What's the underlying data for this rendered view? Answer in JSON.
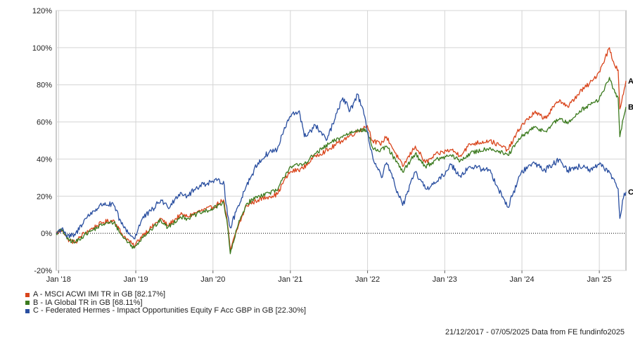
{
  "chart_data": {
    "type": "line",
    "title": "",
    "xlabel": "",
    "ylabel": "",
    "x_range": [
      "2017-12-21",
      "2025-05-07"
    ],
    "ylim": [
      -20,
      120
    ],
    "y_ticks": [
      -20,
      0,
      20,
      40,
      60,
      80,
      100,
      120
    ],
    "y_tick_labels": [
      "-20%",
      "0%",
      "20%",
      "40%",
      "60%",
      "80%",
      "100%",
      "120%"
    ],
    "x_ticks": [
      {
        "date": "2018-01-01",
        "label": "Jan '18"
      },
      {
        "date": "2019-01-01",
        "label": "Jan '19"
      },
      {
        "date": "2020-01-01",
        "label": "Jan '20"
      },
      {
        "date": "2021-01-01",
        "label": "Jan '21"
      },
      {
        "date": "2022-01-01",
        "label": "Jan '22"
      },
      {
        "date": "2023-01-01",
        "label": "Jan '23"
      },
      {
        "date": "2024-01-01",
        "label": "Jan '24"
      },
      {
        "date": "2025-01-01",
        "label": "Jan '25"
      }
    ],
    "grid": true,
    "series": [
      {
        "name": "A - MSCI ACWI IMI TR in GB [82.17%]",
        "end_label": "A",
        "color": "#d9451c",
        "points": [
          [
            "2017-12-21",
            0
          ],
          [
            "2018-01-20",
            2
          ],
          [
            "2018-02-10",
            -3
          ],
          [
            "2018-03-20",
            -5
          ],
          [
            "2018-05-01",
            0
          ],
          [
            "2018-06-15",
            3
          ],
          [
            "2018-08-01",
            6
          ],
          [
            "2018-09-20",
            7
          ],
          [
            "2018-10-25",
            0
          ],
          [
            "2018-12-24",
            -7
          ],
          [
            "2019-02-01",
            -1
          ],
          [
            "2019-03-15",
            3
          ],
          [
            "2019-04-30",
            8
          ],
          [
            "2019-06-01",
            4
          ],
          [
            "2019-07-31",
            10
          ],
          [
            "2019-09-01",
            9
          ],
          [
            "2019-11-01",
            12
          ],
          [
            "2019-12-31",
            14
          ],
          [
            "2020-02-20",
            18
          ],
          [
            "2020-03-10",
            5
          ],
          [
            "2020-03-23",
            -9
          ],
          [
            "2020-04-30",
            4
          ],
          [
            "2020-06-08",
            15
          ],
          [
            "2020-08-01",
            18
          ],
          [
            "2020-09-25",
            20
          ],
          [
            "2020-10-31",
            21
          ],
          [
            "2020-11-30",
            28
          ],
          [
            "2020-12-31",
            33
          ],
          [
            "2021-03-01",
            35
          ],
          [
            "2021-05-01",
            42
          ],
          [
            "2021-07-01",
            45
          ],
          [
            "2021-09-01",
            50
          ],
          [
            "2021-11-15",
            55
          ],
          [
            "2021-12-31",
            58
          ],
          [
            "2022-01-25",
            50
          ],
          [
            "2022-03-01",
            48
          ],
          [
            "2022-04-01",
            52
          ],
          [
            "2022-06-16",
            36
          ],
          [
            "2022-08-15",
            47
          ],
          [
            "2022-10-01",
            38
          ],
          [
            "2022-12-01",
            43
          ],
          [
            "2023-01-31",
            45
          ],
          [
            "2023-03-15",
            42
          ],
          [
            "2023-05-01",
            48
          ],
          [
            "2023-07-31",
            50
          ],
          [
            "2023-10-27",
            45
          ],
          [
            "2023-12-29",
            58
          ],
          [
            "2024-02-29",
            65
          ],
          [
            "2024-04-19",
            62
          ],
          [
            "2024-06-28",
            72
          ],
          [
            "2024-08-05",
            68
          ],
          [
            "2024-09-30",
            76
          ],
          [
            "2024-11-29",
            82
          ],
          [
            "2024-12-31",
            87
          ],
          [
            "2025-02-18",
            100
          ],
          [
            "2025-03-05",
            93
          ],
          [
            "2025-03-31",
            88
          ],
          [
            "2025-04-08",
            67
          ],
          [
            "2025-04-25",
            75
          ],
          [
            "2025-05-07",
            82.17
          ]
        ]
      },
      {
        "name": "B - IA Global TR in GB [68.11%]",
        "end_label": "B",
        "color": "#3b7a1e",
        "points": [
          [
            "2017-12-21",
            0
          ],
          [
            "2018-01-20",
            2
          ],
          [
            "2018-02-10",
            -3
          ],
          [
            "2018-03-20",
            -5
          ],
          [
            "2018-05-01",
            -1
          ],
          [
            "2018-06-15",
            2
          ],
          [
            "2018-08-01",
            5
          ],
          [
            "2018-09-20",
            6
          ],
          [
            "2018-10-25",
            -1
          ],
          [
            "2018-12-24",
            -8
          ],
          [
            "2019-02-01",
            -2
          ],
          [
            "2019-03-15",
            2
          ],
          [
            "2019-04-30",
            7
          ],
          [
            "2019-06-01",
            3
          ],
          [
            "2019-07-31",
            9
          ],
          [
            "2019-09-01",
            8
          ],
          [
            "2019-11-01",
            11
          ],
          [
            "2019-12-31",
            13
          ],
          [
            "2020-02-20",
            17
          ],
          [
            "2020-03-10",
            4
          ],
          [
            "2020-03-23",
            -11
          ],
          [
            "2020-04-30",
            5
          ],
          [
            "2020-06-08",
            16
          ],
          [
            "2020-08-01",
            20
          ],
          [
            "2020-09-25",
            22
          ],
          [
            "2020-10-31",
            23
          ],
          [
            "2020-11-30",
            30
          ],
          [
            "2020-12-31",
            36
          ],
          [
            "2021-03-01",
            37
          ],
          [
            "2021-05-01",
            43
          ],
          [
            "2021-07-01",
            48
          ],
          [
            "2021-09-01",
            52
          ],
          [
            "2021-11-15",
            56
          ],
          [
            "2021-12-31",
            55
          ],
          [
            "2022-01-25",
            46
          ],
          [
            "2022-03-01",
            44
          ],
          [
            "2022-04-01",
            47
          ],
          [
            "2022-06-16",
            33
          ],
          [
            "2022-08-15",
            43
          ],
          [
            "2022-10-01",
            36
          ],
          [
            "2022-12-01",
            40
          ],
          [
            "2023-01-31",
            42
          ],
          [
            "2023-03-15",
            39
          ],
          [
            "2023-05-01",
            43
          ],
          [
            "2023-07-31",
            46
          ],
          [
            "2023-10-27",
            42
          ],
          [
            "2023-12-29",
            52
          ],
          [
            "2024-02-29",
            57
          ],
          [
            "2024-04-19",
            55
          ],
          [
            "2024-06-28",
            62
          ],
          [
            "2024-08-05",
            59
          ],
          [
            "2024-09-30",
            66
          ],
          [
            "2024-11-29",
            70
          ],
          [
            "2024-12-31",
            72
          ],
          [
            "2025-02-18",
            84
          ],
          [
            "2025-03-05",
            78
          ],
          [
            "2025-03-31",
            73
          ],
          [
            "2025-04-08",
            52
          ],
          [
            "2025-04-25",
            62
          ],
          [
            "2025-05-07",
            68.11
          ]
        ]
      },
      {
        "name": "C - Federated Hermes - Impact Opportunities Equity F Acc GBP in GB [22.30%]",
        "end_label": "C",
        "color": "#2a4fa0",
        "points": [
          [
            "2017-12-21",
            0
          ],
          [
            "2018-01-20",
            3
          ],
          [
            "2018-02-10",
            -2
          ],
          [
            "2018-03-20",
            -1
          ],
          [
            "2018-05-01",
            7
          ],
          [
            "2018-06-15",
            12
          ],
          [
            "2018-08-01",
            16
          ],
          [
            "2018-09-20",
            15
          ],
          [
            "2018-10-25",
            5
          ],
          [
            "2018-12-24",
            -3
          ],
          [
            "2019-02-01",
            8
          ],
          [
            "2019-03-15",
            12
          ],
          [
            "2019-04-30",
            18
          ],
          [
            "2019-06-01",
            14
          ],
          [
            "2019-07-31",
            22
          ],
          [
            "2019-09-01",
            20
          ],
          [
            "2019-11-01",
            26
          ],
          [
            "2019-12-31",
            28
          ],
          [
            "2020-02-20",
            28
          ],
          [
            "2020-03-10",
            10
          ],
          [
            "2020-03-23",
            3
          ],
          [
            "2020-04-30",
            15
          ],
          [
            "2020-06-08",
            26
          ],
          [
            "2020-08-01",
            38
          ],
          [
            "2020-09-25",
            44
          ],
          [
            "2020-10-31",
            45
          ],
          [
            "2020-11-30",
            55
          ],
          [
            "2020-12-31",
            63
          ],
          [
            "2021-02-12",
            66
          ],
          [
            "2021-03-08",
            52
          ],
          [
            "2021-05-01",
            58
          ],
          [
            "2021-06-20",
            50
          ],
          [
            "2021-08-01",
            62
          ],
          [
            "2021-09-06",
            73
          ],
          [
            "2021-10-10",
            66
          ],
          [
            "2021-11-15",
            75
          ],
          [
            "2021-12-15",
            64
          ],
          [
            "2022-01-27",
            40
          ],
          [
            "2022-03-08",
            30
          ],
          [
            "2022-04-01",
            38
          ],
          [
            "2022-06-16",
            15
          ],
          [
            "2022-08-15",
            33
          ],
          [
            "2022-10-01",
            24
          ],
          [
            "2022-12-01",
            28
          ],
          [
            "2023-01-31",
            37
          ],
          [
            "2023-03-15",
            31
          ],
          [
            "2023-05-01",
            36
          ],
          [
            "2023-07-31",
            34
          ],
          [
            "2023-10-27",
            14
          ],
          [
            "2023-12-29",
            33
          ],
          [
            "2024-02-29",
            38
          ],
          [
            "2024-04-19",
            34
          ],
          [
            "2024-06-28",
            40
          ],
          [
            "2024-08-05",
            34
          ],
          [
            "2024-09-30",
            36
          ],
          [
            "2024-11-29",
            34
          ],
          [
            "2024-12-31",
            37
          ],
          [
            "2025-02-18",
            33
          ],
          [
            "2025-03-05",
            30
          ],
          [
            "2025-03-31",
            24
          ],
          [
            "2025-04-08",
            8
          ],
          [
            "2025-04-25",
            19
          ],
          [
            "2025-05-07",
            22.3
          ]
        ]
      }
    ],
    "baseline": 0,
    "legend_position": "bottom-left"
  },
  "footer_text": "21/12/2017 - 07/05/2025 Data from FE fundinfo2025"
}
